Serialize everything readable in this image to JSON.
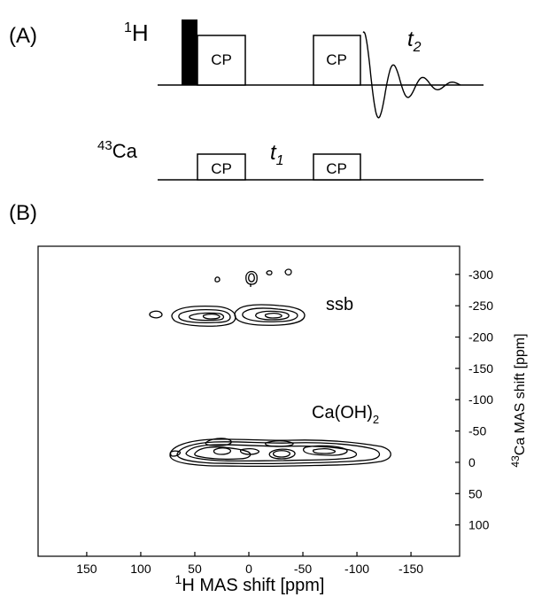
{
  "panel_a": {
    "label": "(A)",
    "channel_h": {
      "sup": "1",
      "base": "H"
    },
    "channel_ca": {
      "sup": "43",
      "base": "Ca"
    },
    "cp_label": "CP",
    "t1": {
      "base": "t",
      "sub": "1"
    },
    "t2": {
      "base": "t",
      "sub": "2"
    }
  },
  "panel_b": {
    "label": "(B)",
    "xaxis_label": {
      "sup": "1",
      "base": "H MAS shift [ppm]"
    },
    "yaxis_label": {
      "sup": "43",
      "base": "Ca MAS shift [ppm]"
    },
    "annotation_ssb": "ssb",
    "annotation_caoh2": {
      "base": "Ca(OH)",
      "sub": "2"
    }
  },
  "chart_data": {
    "type": "contour",
    "x_ticks": [
      "150",
      "100",
      "50",
      "0",
      "-50",
      "-100",
      "-150"
    ],
    "x_tick_values": [
      150,
      100,
      50,
      0,
      -50,
      -100,
      -150
    ],
    "y_ticks": [
      "-300",
      "-250",
      "-200",
      "-150",
      "-100",
      "-50",
      "0",
      "50",
      "100"
    ],
    "y_tick_values": [
      -300,
      -250,
      -200,
      -150,
      -100,
      -50,
      0,
      50,
      100
    ],
    "xlim": [
      195,
      -195
    ],
    "ylim": [
      -345,
      150
    ],
    "xlabel": "1H MAS shift [ppm]",
    "ylabel": "43Ca MAS shift [ppm]",
    "peaks": [
      {
        "label": "Ca(OH)2 main ridge",
        "x_center": 10,
        "x_range": [
          75,
          -65
        ],
        "y_center": 0,
        "y_range": [
          -25,
          15
        ]
      },
      {
        "label": "ssb band left",
        "x_center": 38,
        "x_range": [
          65,
          10
        ],
        "y_center": -225,
        "y_range": [
          -245,
          -205
        ]
      },
      {
        "label": "ssb band right",
        "x_center": -18,
        "x_range": [
          10,
          -50
        ],
        "y_center": -225,
        "y_range": [
          -245,
          -205
        ]
      },
      {
        "label": "ssb isolated",
        "x_center": 95,
        "y_center": -225
      },
      {
        "label": "ssb upper",
        "x_center": 3,
        "y_center": -290
      }
    ]
  }
}
